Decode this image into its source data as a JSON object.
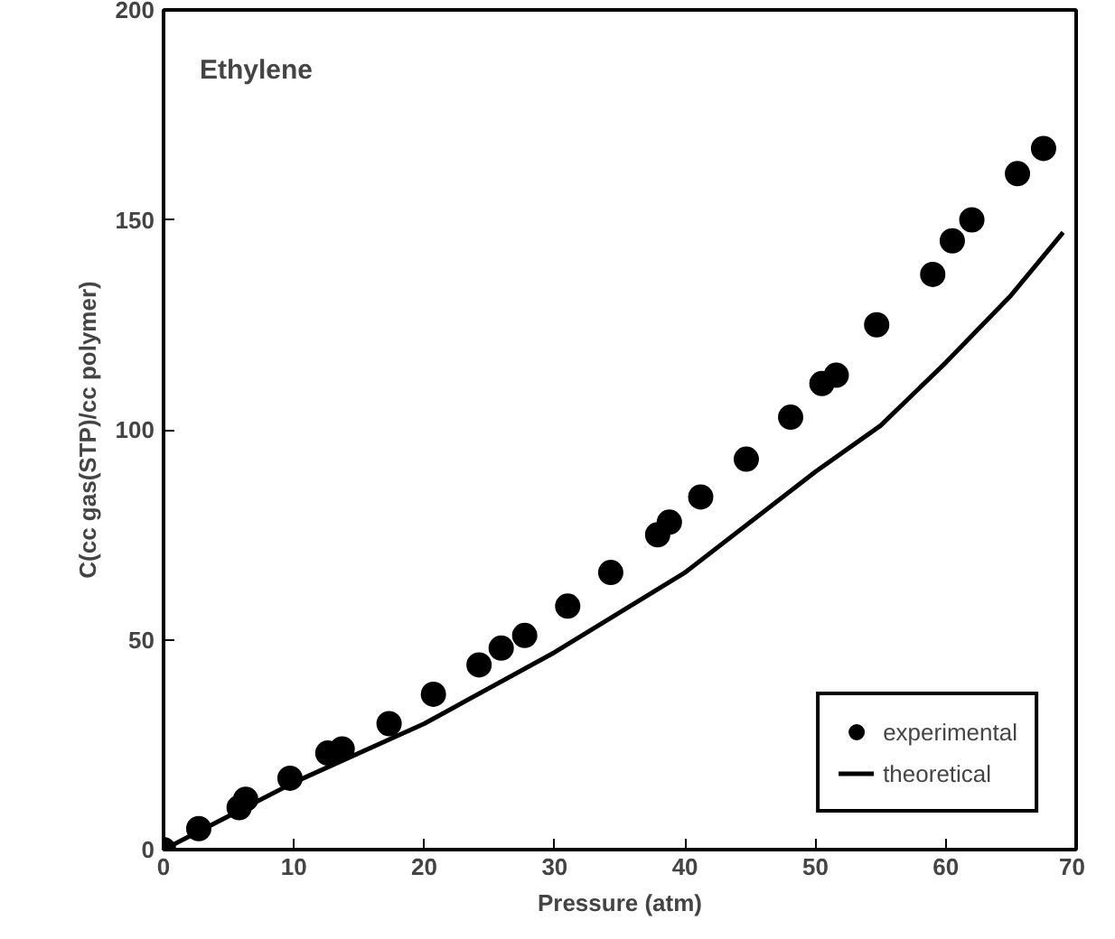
{
  "chart_data": {
    "type": "scatter",
    "xlabel": "Pressure (atm)",
    "ylabel": "C(cc gas(STP)/cc polymer)",
    "annotations": [
      "Ethylene"
    ],
    "xlim": [
      0,
      70
    ],
    "ylim": [
      0,
      200
    ],
    "xticks": [
      0,
      10,
      20,
      30,
      40,
      50,
      60,
      70
    ],
    "yticks": [
      0,
      50,
      100,
      150,
      200
    ],
    "grid": false,
    "legend": "bottom right",
    "series": [
      {
        "name": "experimental",
        "marker": "circle",
        "color": "#000000",
        "x": [
          0,
          2.7,
          5.8,
          6.3,
          9.7,
          12.6,
          13.7,
          17.3,
          20.7,
          24.2,
          25.9,
          27.7,
          31,
          34.3,
          37.9,
          38.8,
          41.2,
          44.7,
          48.1,
          50.5,
          51.6,
          54.7,
          59,
          60.5,
          62,
          65.5,
          67.5
        ],
        "values": [
          0,
          5,
          10,
          12,
          17,
          23,
          24,
          30,
          37,
          44,
          48,
          51,
          58,
          66,
          75,
          78,
          84,
          93,
          103,
          111,
          113,
          125,
          137,
          145,
          150,
          161,
          167
        ]
      },
      {
        "name": "theoretical",
        "type": "line",
        "color": "#000000",
        "line_style": "solid",
        "x": [
          0,
          10,
          20,
          30,
          40,
          50,
          55,
          60,
          65,
          69
        ],
        "values": [
          0,
          16,
          30,
          47,
          66,
          90,
          101,
          116,
          132,
          147
        ]
      }
    ]
  }
}
